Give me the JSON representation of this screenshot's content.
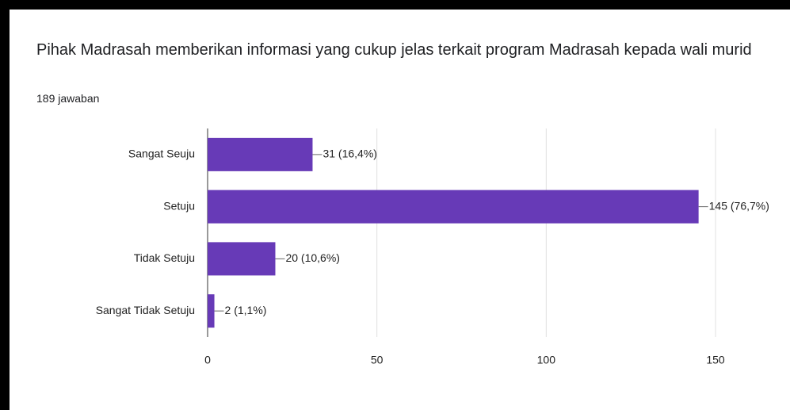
{
  "chart_data": {
    "type": "bar",
    "orientation": "horizontal",
    "title": "Pihak Madrasah memberikan informasi yang cukup jelas terkait program Madrasah kepada wali murid",
    "subtitle": "189 jawaban",
    "categories": [
      "Sangat Seuju",
      "Setuju",
      "Tidak Setuju",
      "Sangat Tidak Setuju"
    ],
    "values": [
      31,
      145,
      20,
      2
    ],
    "value_labels": [
      "31 (16,4%)",
      "145 (76,7%)",
      "20 (10,6%)",
      "2 (1,1%)"
    ],
    "color": "#673ab7",
    "xlim": [
      0,
      150
    ],
    "xticks": [
      0,
      50,
      100,
      150
    ],
    "grid": true
  }
}
